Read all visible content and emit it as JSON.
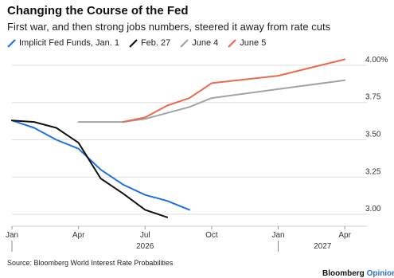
{
  "header": {
    "title": "Changing the Course of the Fed",
    "subtitle": "First war, and then strong jobs numbers, steered it away from rate cuts"
  },
  "footer": {
    "source": "Source: Bloomberg World Interest Rate Probabilities",
    "brand_main": "Bloomberg",
    "brand_accent": "Opinion"
  },
  "chart_data": {
    "type": "line",
    "title": "Changing the Course of the Fed",
    "subtitle": "First war, and then strong jobs numbers, steered it away from rate cuts",
    "xlabel": "",
    "ylabel": "",
    "ylim": [
      2.92,
      4.08
    ],
    "xlim": [
      "2026-01",
      "2027-05"
    ],
    "grid": true,
    "legend_position": "top",
    "x_ticks": [
      {
        "x": "2026-01",
        "label": "Jan"
      },
      {
        "x": "2026-04",
        "label": "Apr"
      },
      {
        "x": "2026-07",
        "label": "Jul"
      },
      {
        "x": "2026-10",
        "label": "Oct"
      },
      {
        "x": "2027-01",
        "label": "Jan"
      },
      {
        "x": "2027-04",
        "label": "Apr"
      }
    ],
    "year_labels": [
      {
        "x": "2026-07",
        "label": "2026"
      },
      {
        "x": "2027-03",
        "label": "2027"
      }
    ],
    "year_separators": [
      "2026-01",
      "2027-01"
    ],
    "y_ticks": [
      {
        "y": 3.0,
        "label": "3.00"
      },
      {
        "y": 3.25,
        "label": "3.25"
      },
      {
        "y": 3.5,
        "label": "3.50"
      },
      {
        "y": 3.75,
        "label": "3.75"
      },
      {
        "y": 4.0,
        "label": "4.00%"
      }
    ],
    "series": [
      {
        "name": "Implicit Fed Funds, Jan. 1",
        "color": "#1f6fe5",
        "points": [
          {
            "x": "2026-01",
            "y": 3.63
          },
          {
            "x": "2026-02",
            "y": 3.58
          },
          {
            "x": "2026-03",
            "y": 3.5
          },
          {
            "x": "2026-04",
            "y": 3.44
          },
          {
            "x": "2026-05",
            "y": 3.3
          },
          {
            "x": "2026-06",
            "y": 3.2
          },
          {
            "x": "2026-07",
            "y": 3.13
          },
          {
            "x": "2026-08",
            "y": 3.09
          },
          {
            "x": "2026-09",
            "y": 3.03
          }
        ]
      },
      {
        "name": "Feb. 27",
        "color": "#111111",
        "points": [
          {
            "x": "2026-01",
            "y": 3.63
          },
          {
            "x": "2026-02",
            "y": 3.62
          },
          {
            "x": "2026-03",
            "y": 3.58
          },
          {
            "x": "2026-04",
            "y": 3.48
          },
          {
            "x": "2026-05",
            "y": 3.24
          },
          {
            "x": "2026-06",
            "y": 3.14
          },
          {
            "x": "2026-07",
            "y": 3.03
          },
          {
            "x": "2026-08",
            "y": 2.98
          }
        ]
      },
      {
        "name": "June 4",
        "color": "#a0a3a8",
        "points": [
          {
            "x": "2026-04",
            "y": 3.62
          },
          {
            "x": "2026-06",
            "y": 3.62
          },
          {
            "x": "2026-07",
            "y": 3.64
          },
          {
            "x": "2026-08",
            "y": 3.68
          },
          {
            "x": "2026-09",
            "y": 3.72
          },
          {
            "x": "2026-10",
            "y": 3.78
          },
          {
            "x": "2027-01",
            "y": 3.84
          },
          {
            "x": "2027-04",
            "y": 3.9
          }
        ]
      },
      {
        "name": "June 5",
        "color": "#ec6a4c",
        "points": [
          {
            "x": "2026-06",
            "y": 3.62
          },
          {
            "x": "2026-07",
            "y": 3.65
          },
          {
            "x": "2026-08",
            "y": 3.73
          },
          {
            "x": "2026-09",
            "y": 3.78
          },
          {
            "x": "2026-10",
            "y": 3.88
          },
          {
            "x": "2027-01",
            "y": 3.93
          },
          {
            "x": "2027-04",
            "y": 4.04
          }
        ]
      }
    ]
  }
}
